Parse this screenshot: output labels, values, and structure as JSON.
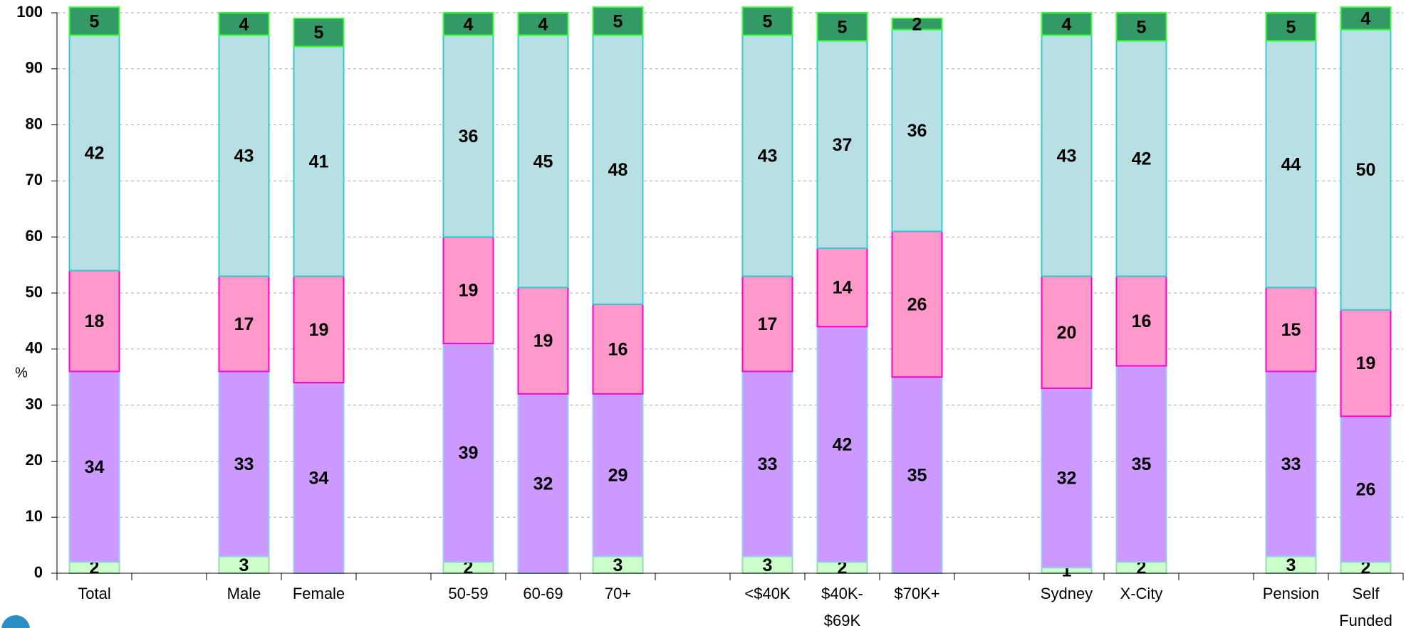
{
  "chart_data": {
    "type": "stacked_bar",
    "y_label": "%",
    "categories": [
      "Total",
      null,
      "Male",
      "Female",
      null,
      "50-59",
      "60-69",
      "70+",
      null,
      "<$40K",
      "$40K-\n$69K",
      "$70K+",
      null,
      "Sydney",
      "X-City",
      null,
      "Pension",
      "Self\nFunded"
    ],
    "series": [
      {
        "color": "#ccffcc",
        "border": "#99ddaa",
        "values": [
          2,
          null,
          3,
          null,
          null,
          2,
          null,
          3,
          null,
          3,
          2,
          null,
          null,
          1,
          2,
          null,
          3,
          2
        ]
      },
      {
        "color": "#cc99ff",
        "border": "#99ccee",
        "values": [
          34,
          null,
          33,
          34,
          null,
          39,
          32,
          29,
          null,
          33,
          42,
          35,
          null,
          32,
          35,
          null,
          33,
          26
        ]
      },
      {
        "color": "#ff99cc",
        "border": "#ff00cc",
        "values": [
          18,
          null,
          17,
          19,
          null,
          19,
          19,
          16,
          null,
          17,
          14,
          26,
          null,
          20,
          16,
          null,
          15,
          19
        ]
      },
      {
        "color": "#b8e0e4",
        "border": "#33cccc",
        "values": [
          42,
          null,
          43,
          41,
          null,
          36,
          45,
          48,
          null,
          43,
          37,
          36,
          null,
          43,
          42,
          null,
          44,
          50
        ]
      },
      {
        "color": "#339966",
        "border": "#33ff33",
        "values": [
          5,
          null,
          4,
          5,
          null,
          4,
          4,
          5,
          null,
          5,
          5,
          2,
          null,
          4,
          5,
          null,
          5,
          4
        ]
      }
    ],
    "ylim": [
      0,
      100
    ],
    "yticks": [
      0,
      10,
      20,
      30,
      40,
      50,
      60,
      70,
      80,
      90,
      100
    ],
    "grid": true
  }
}
